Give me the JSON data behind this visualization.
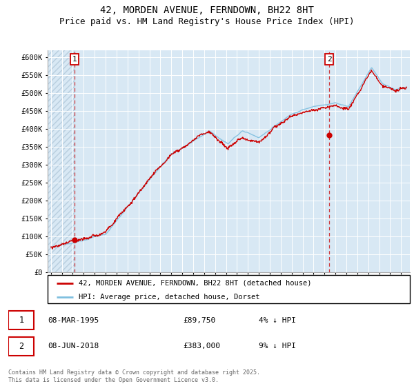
{
  "title": "42, MORDEN AVENUE, FERNDOWN, BH22 8HT",
  "subtitle": "Price paid vs. HM Land Registry's House Price Index (HPI)",
  "ylabel_ticks": [
    "£0",
    "£50K",
    "£100K",
    "£150K",
    "£200K",
    "£250K",
    "£300K",
    "£350K",
    "£400K",
    "£450K",
    "£500K",
    "£550K",
    "£600K"
  ],
  "ylim": [
    0,
    620000
  ],
  "xlim_start": 1992.7,
  "xlim_end": 2025.8,
  "sale1_x": 1995.18,
  "sale1_y": 89750,
  "sale1_label": "1",
  "sale2_x": 2018.44,
  "sale2_y": 383000,
  "sale2_label": "2",
  "hpi_color": "#7fbfdf",
  "price_color": "#cc0000",
  "marker_box_color": "#cc0000",
  "background_plot": "#d8e8f4",
  "background_fig": "#ffffff",
  "grid_color": "#ffffff",
  "legend_line1": "42, MORDEN AVENUE, FERNDOWN, BH22 8HT (detached house)",
  "legend_line2": "HPI: Average price, detached house, Dorset",
  "table_row1": [
    "1",
    "08-MAR-1995",
    "£89,750",
    "4% ↓ HPI"
  ],
  "table_row2": [
    "2",
    "08-JUN-2018",
    "£383,000",
    "9% ↓ HPI"
  ],
  "footer": "Contains HM Land Registry data © Crown copyright and database right 2025.\nThis data is licensed under the Open Government Licence v3.0.",
  "title_fontsize": 10,
  "subtitle_fontsize": 9,
  "tick_fontsize": 7.5,
  "font_family": "monospace"
}
